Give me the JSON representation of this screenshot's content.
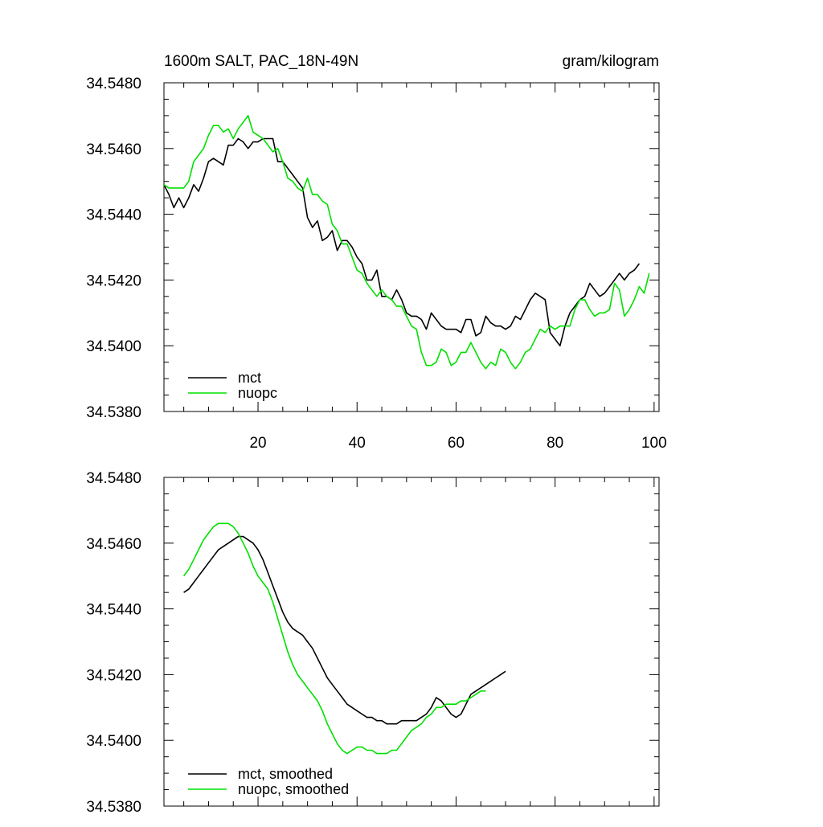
{
  "chart_data": [
    {
      "type": "line",
      "title": "1600m SALT, PAC_18N-49N",
      "units": "gram/kilogram",
      "xlabel": "",
      "ylabel": "",
      "xlim": [
        1,
        101
      ],
      "ylim": [
        34.538,
        34.548
      ],
      "x_ticks": [
        20,
        40,
        60,
        80,
        100
      ],
      "x_tick_labels": [
        "20",
        "40",
        "60",
        "80",
        "100"
      ],
      "y_ticks": [
        34.538,
        34.54,
        34.542,
        34.544,
        34.546,
        34.548
      ],
      "y_tick_labels": [
        "34.5380",
        "34.5400",
        "34.5420",
        "34.5440",
        "34.5460",
        "34.5480"
      ],
      "legend_position": "bottom-left",
      "series": [
        {
          "name": "mct",
          "color": "#000000",
          "x_start": 1,
          "values": [
            34.5449,
            34.5446,
            34.5442,
            34.5445,
            34.5442,
            34.5445,
            34.5449,
            34.5447,
            34.5451,
            34.5456,
            34.5457,
            34.5456,
            34.5455,
            34.5461,
            34.5461,
            34.5463,
            34.5462,
            34.546,
            34.5462,
            34.5462,
            34.5463,
            34.5463,
            34.5463,
            34.5456,
            34.5456,
            34.5454,
            34.5452,
            34.545,
            34.5448,
            34.5439,
            34.5436,
            34.5438,
            34.5432,
            34.5433,
            34.5435,
            34.5429,
            34.5432,
            34.5432,
            34.543,
            34.5427,
            34.5425,
            34.542,
            34.542,
            34.5423,
            34.5415,
            34.5415,
            34.5414,
            34.5417,
            34.5414,
            34.541,
            34.5409,
            34.5409,
            34.5408,
            34.5405,
            34.541,
            34.5408,
            34.5406,
            34.5405,
            34.5405,
            34.5405,
            34.5404,
            34.5408,
            34.5408,
            34.5403,
            34.5404,
            34.5409,
            34.5407,
            34.5406,
            34.5406,
            34.5405,
            34.5406,
            34.5409,
            34.5408,
            34.5411,
            34.5414,
            34.5416,
            34.5415,
            34.5414,
            34.5404,
            34.5402,
            34.54,
            34.5406,
            34.541,
            34.5412,
            34.5414,
            34.5415,
            34.5419,
            34.5417,
            34.5415,
            34.5416,
            34.5418,
            34.542,
            34.5422,
            34.542,
            34.5422,
            34.5423,
            34.5425
          ]
        },
        {
          "name": "nuopc",
          "color": "#00e000",
          "x_start": 1,
          "values": [
            34.5449,
            34.5448,
            34.5448,
            34.5448,
            34.5448,
            34.545,
            34.5456,
            34.5458,
            34.546,
            34.5464,
            34.5467,
            34.5467,
            34.5465,
            34.5466,
            34.5463,
            34.5466,
            34.5468,
            34.547,
            34.5465,
            34.5464,
            34.5463,
            34.5461,
            34.5459,
            34.546,
            34.5456,
            34.5451,
            34.545,
            34.5448,
            34.5447,
            34.5451,
            34.5446,
            34.5446,
            34.5444,
            34.5443,
            34.5437,
            34.5435,
            34.5431,
            34.5431,
            34.5427,
            34.5423,
            34.5422,
            34.5419,
            34.5417,
            34.5415,
            34.5417,
            34.5415,
            34.5414,
            34.5412,
            34.5412,
            34.5409,
            34.5406,
            34.5405,
            34.5398,
            34.5394,
            34.5394,
            34.5395,
            34.5399,
            34.5398,
            34.5394,
            34.5395,
            34.5398,
            34.5398,
            34.5401,
            34.5398,
            34.5395,
            34.5393,
            34.5395,
            34.5394,
            34.5399,
            34.5398,
            34.5395,
            34.5393,
            34.5395,
            34.5398,
            34.5399,
            34.5402,
            34.5405,
            34.5404,
            34.5406,
            34.5405,
            34.5406,
            34.5406,
            34.5406,
            34.5411,
            34.5414,
            34.5414,
            34.5411,
            34.5409,
            34.541,
            34.541,
            34.5411,
            34.5419,
            34.5417,
            34.5409,
            34.5411,
            34.5414,
            34.5418,
            34.5416,
            34.5422
          ]
        }
      ]
    },
    {
      "type": "line",
      "title": "",
      "units": "",
      "xlabel": "",
      "ylabel": "",
      "xlim": [
        1,
        101
      ],
      "ylim": [
        34.538,
        34.548
      ],
      "x_ticks": [
        20,
        40,
        60,
        80,
        100
      ],
      "x_tick_labels": [],
      "y_ticks": [
        34.538,
        34.54,
        34.542,
        34.544,
        34.546,
        34.548
      ],
      "y_tick_labels": [
        "34.5380",
        "34.5400",
        "34.5420",
        "34.5440",
        "34.5460",
        "34.5480"
      ],
      "legend_position": "bottom-left",
      "series": [
        {
          "name": "mct, smoothed",
          "color": "#000000",
          "x_start": 5,
          "values": [
            34.5445,
            34.5446,
            34.5448,
            34.545,
            34.5452,
            34.5454,
            34.5456,
            34.5458,
            34.5459,
            34.546,
            34.5461,
            34.5462,
            34.5462,
            34.5461,
            34.546,
            34.5458,
            34.5455,
            34.5451,
            34.5447,
            34.5443,
            34.5439,
            34.5436,
            34.5434,
            34.5433,
            34.5432,
            34.543,
            34.5428,
            34.5425,
            34.5422,
            34.5419,
            34.5417,
            34.5415,
            34.5413,
            34.5411,
            34.541,
            34.5409,
            34.5408,
            34.5407,
            34.5407,
            34.5406,
            34.5406,
            34.5405,
            34.5405,
            34.5405,
            34.5406,
            34.5406,
            34.5406,
            34.5406,
            34.5407,
            34.5408,
            34.541,
            34.5413,
            34.5412,
            34.541,
            34.5408,
            34.5407,
            34.5408,
            34.5411,
            34.5414,
            34.5415,
            34.5416,
            34.5417,
            34.5418,
            34.5419,
            34.542,
            34.5421
          ]
        },
        {
          "name": "nuopc, smoothed",
          "color": "#00e000",
          "x_start": 5,
          "values": [
            34.545,
            34.5452,
            34.5455,
            34.5458,
            34.5461,
            34.5463,
            34.5465,
            34.5466,
            34.5466,
            34.5466,
            34.5465,
            34.5463,
            34.546,
            34.5457,
            34.5453,
            34.545,
            34.5448,
            34.5446,
            34.5442,
            34.5437,
            34.5432,
            34.5427,
            34.5423,
            34.542,
            34.5418,
            34.5416,
            34.5414,
            34.5412,
            34.5409,
            34.5405,
            34.5402,
            34.5399,
            34.5397,
            34.5396,
            34.5397,
            34.5398,
            34.5398,
            34.5397,
            34.5397,
            34.5396,
            34.5396,
            34.5396,
            34.5397,
            34.5397,
            34.5399,
            34.5401,
            34.5403,
            34.5404,
            34.5405,
            34.5407,
            34.5408,
            34.541,
            34.541,
            34.5411,
            34.5411,
            34.5411,
            34.5412,
            34.5412,
            34.5413,
            34.5414,
            34.5415,
            34.5415
          ]
        }
      ]
    }
  ]
}
